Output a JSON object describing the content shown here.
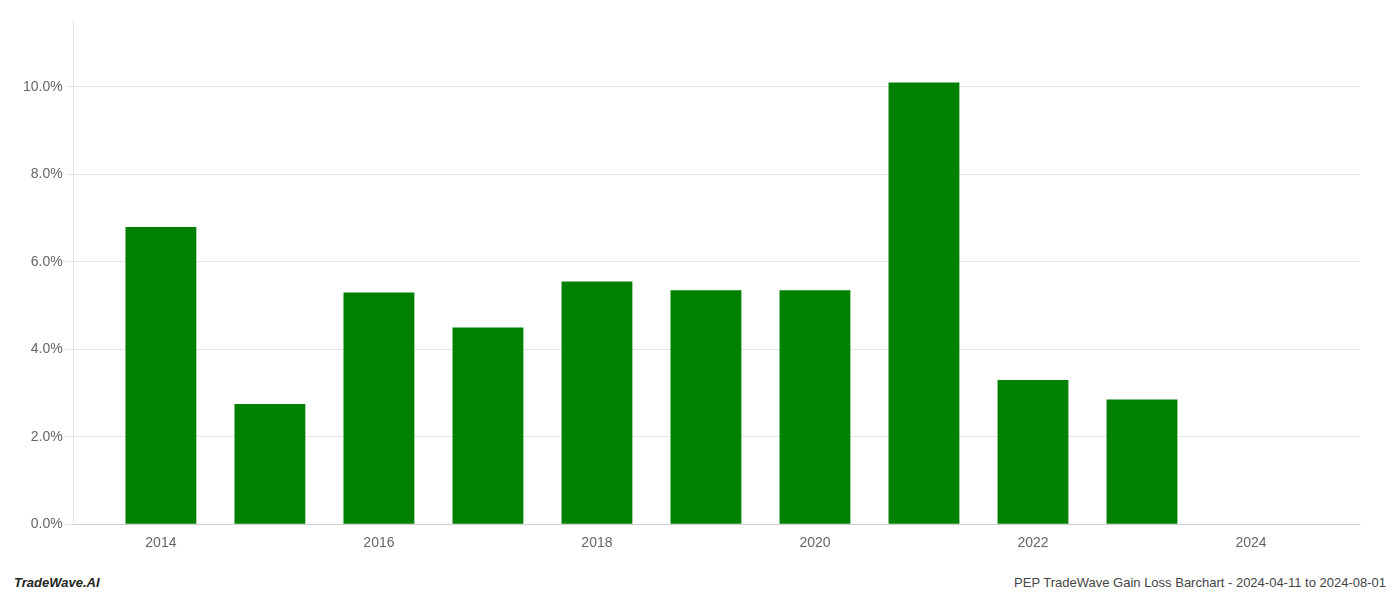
{
  "chart_data": {
    "type": "bar",
    "x": [
      2014,
      2015,
      2016,
      2017,
      2018,
      2019,
      2020,
      2021,
      2022,
      2023
    ],
    "values": [
      0.068,
      0.0275,
      0.053,
      0.045,
      0.0555,
      0.0535,
      0.0535,
      0.101,
      0.033,
      0.0285
    ],
    "color": "#008000",
    "xlim": [
      2013.2,
      2025.0
    ],
    "xticks": [
      2014,
      2016,
      2018,
      2020,
      2022,
      2024
    ],
    "ylim": [
      0.0,
      0.115
    ],
    "yticks": [
      {
        "value": 0.0,
        "label": "0.0%"
      },
      {
        "value": 0.02,
        "label": "2.0%"
      },
      {
        "value": 0.04,
        "label": "4.0%"
      },
      {
        "value": 0.06,
        "label": "6.0%"
      },
      {
        "value": 0.08,
        "label": "8.0%"
      },
      {
        "value": 0.1,
        "label": "10.0%"
      }
    ],
    "grid": true,
    "annotations": [
      "TradeWave.AI",
      "PEP TradeWave Gain Loss Barchart - 2024-04-11 to 2024-08-01"
    ]
  }
}
